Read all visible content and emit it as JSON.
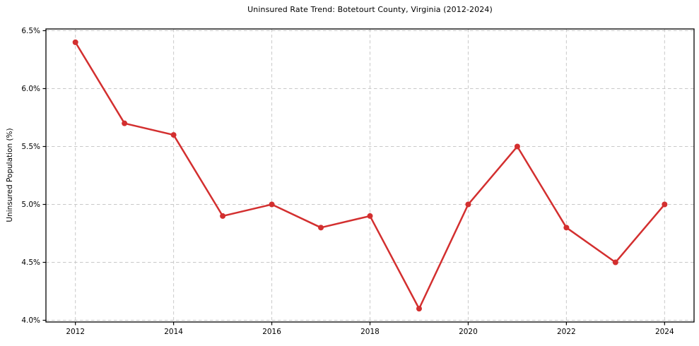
{
  "chart_data": {
    "type": "line",
    "title": "Uninsured Rate Trend: Botetourt County, Virginia (2012-2024)",
    "xlabel": "",
    "ylabel": "Uninsured Population (%)",
    "x": [
      2012,
      2013,
      2014,
      2015,
      2016,
      2017,
      2018,
      2019,
      2020,
      2021,
      2022,
      2023,
      2024
    ],
    "series": [
      {
        "name": "Uninsured Rate",
        "values": [
          6.4,
          5.7,
          5.6,
          4.9,
          5.0,
          4.8,
          4.9,
          4.1,
          5.0,
          5.5,
          4.8,
          4.5,
          5.0
        ],
        "color": "#d32f2f",
        "marker": "circle"
      }
    ],
    "xlim": [
      2011.4,
      2024.6
    ],
    "ylim": [
      3.985,
      6.515
    ],
    "x_ticks": [
      2012,
      2014,
      2016,
      2018,
      2020,
      2022,
      2024
    ],
    "x_tick_labels": [
      "2012",
      "2014",
      "2016",
      "2018",
      "2020",
      "2022",
      "2024"
    ],
    "y_ticks": [
      4.0,
      4.5,
      5.0,
      5.5,
      6.0,
      6.5
    ],
    "y_tick_labels": [
      "4.0%",
      "4.5%",
      "5.0%",
      "5.5%",
      "6.0%",
      "6.5%"
    ],
    "grid": "dashed, horizontal and vertical at major ticks",
    "legend": "none",
    "colors": {
      "line": "#d32f2f",
      "grid": "#c9c9c9",
      "spine": "#000000",
      "text": "#000000",
      "background": "#ffffff"
    }
  }
}
